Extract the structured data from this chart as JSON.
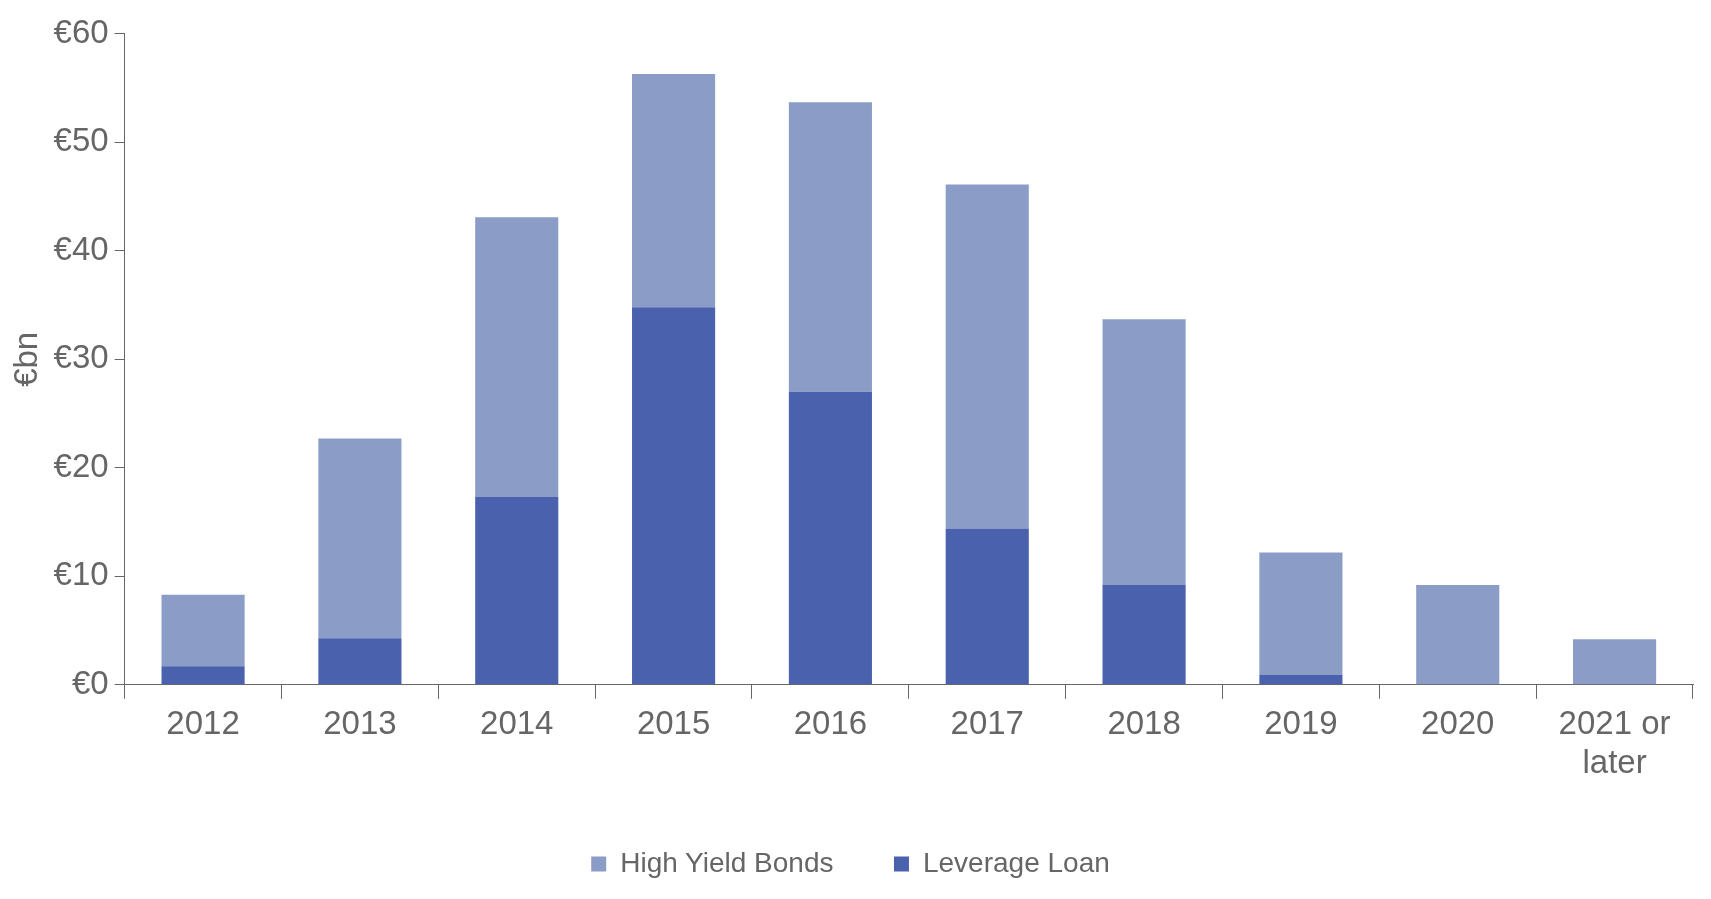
{
  "chart_data": {
    "type": "bar",
    "ylabel": "€bn",
    "stacked": true,
    "categories": [
      "2012",
      "2013",
      "2014",
      "2015",
      "2016",
      "2017",
      "2018",
      "2019",
      "2020",
      "2021 or later"
    ],
    "series": [
      {
        "name": "Leverage Loan",
        "color": "#4a62ad",
        "values": [
          1.7,
          4.3,
          17.3,
          34.8,
          27.0,
          14.4,
          9.2,
          0.9,
          0,
          0
        ]
      },
      {
        "name": "High Yield Bonds",
        "color": "#8b9dc7",
        "values": [
          6.6,
          18.4,
          25.8,
          21.5,
          26.7,
          31.7,
          24.5,
          11.3,
          9.2,
          4.2
        ]
      }
    ],
    "ylim": [
      0,
      60
    ],
    "yticks": [
      {
        "value": 0,
        "label": "€0"
      },
      {
        "value": 10,
        "label": "€10"
      },
      {
        "value": 20,
        "label": "€20"
      },
      {
        "value": 30,
        "label": "€30"
      },
      {
        "value": 40,
        "label": "€40"
      },
      {
        "value": 50,
        "label": "€50"
      },
      {
        "value": 60,
        "label": "€60"
      }
    ],
    "grid": false,
    "legend": "bottom"
  }
}
